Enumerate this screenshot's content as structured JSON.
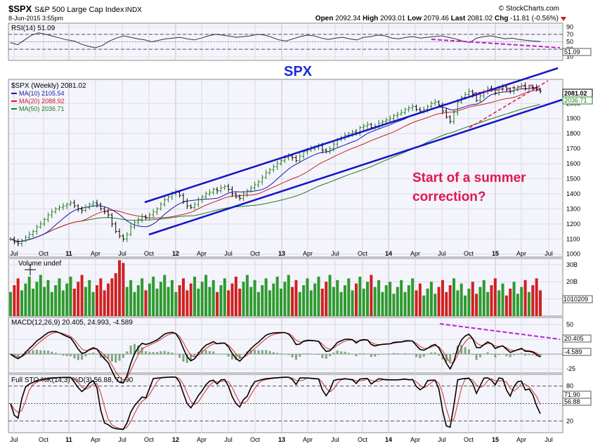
{
  "header": {
    "symbol": "$SPX",
    "name": "S&P 500 Large Cap Index",
    "exchange": "INDX",
    "date": "8-Jun-2015 3:55pm",
    "credit": "© StockCharts.com",
    "open_label": "Open",
    "open": "2092.34",
    "high_label": "High",
    "high": "2093.01",
    "low_label": "Low",
    "low": "2079.46",
    "last_label": "Last",
    "last": "2081.02",
    "chg_label": "Chg",
    "chg": "-11.81 (-0.56%)",
    "down_arrow_icon": "down-triangle-icon"
  },
  "annotations": {
    "title": "SPX",
    "note_line1": "Start of a summer",
    "note_line2": "correction?",
    "title_color": "#1b2bd8",
    "note_color": "#e0184f",
    "channel_color": "#1313c8",
    "divergence_color": "#c020c8"
  },
  "chart_data": [
    {
      "panel": "rsi",
      "type": "line",
      "legend": "RSI(14) 51.09",
      "current": "51.09",
      "ylim": [
        0,
        100
      ],
      "yticks": [
        "90",
        "70",
        "50",
        "30",
        "10"
      ],
      "overbought": 70,
      "oversold": 30,
      "series": [
        {
          "values": [
            48,
            42,
            55,
            68,
            74,
            70,
            65,
            60,
            55,
            52,
            44,
            38,
            34,
            40,
            52,
            60,
            66,
            62,
            58,
            55,
            50,
            54,
            58,
            60,
            62,
            58,
            55,
            60,
            66,
            70,
            68,
            65,
            62,
            64,
            66,
            70,
            68,
            62,
            55,
            52,
            58,
            64,
            68,
            66,
            60,
            56,
            60,
            62,
            58,
            55,
            62,
            64,
            68,
            66,
            60,
            58,
            62,
            64,
            60,
            62,
            64,
            66,
            62,
            58,
            52,
            48,
            60,
            64,
            66,
            62,
            58,
            60,
            56,
            54,
            52,
            51
          ]
        }
      ]
    },
    {
      "panel": "price",
      "type": "line",
      "legend": "$SPX (Weekly) 2081.02",
      "ylim": [
        980,
        2160
      ],
      "yticks": [
        "2000",
        "1900",
        "1800",
        "1700",
        "1600",
        "1500",
        "1400",
        "1300",
        "1200",
        "1100",
        "1000"
      ],
      "last_tags": [
        "2081.02",
        "2036.71"
      ],
      "series": [
        {
          "name": "$SPX (Weekly)",
          "value": "2081.02",
          "values": [
            1100,
            1080,
            1070,
            1090,
            1110,
            1130,
            1150,
            1180,
            1200,
            1230,
            1260,
            1280,
            1300,
            1310,
            1320,
            1330,
            1340,
            1320,
            1300,
            1290,
            1310,
            1330,
            1340,
            1330,
            1300,
            1280,
            1260,
            1200,
            1150,
            1120,
            1100,
            1130,
            1180,
            1210,
            1230,
            1250,
            1240,
            1260,
            1280,
            1300,
            1330,
            1360,
            1380,
            1400,
            1410,
            1390,
            1350,
            1320,
            1310,
            1330,
            1360,
            1380,
            1400,
            1410,
            1430,
            1420,
            1440,
            1450,
            1430,
            1400,
            1380,
            1370,
            1400,
            1420,
            1440,
            1460,
            1480,
            1510,
            1540,
            1560,
            1580,
            1600,
            1620,
            1640,
            1650,
            1640,
            1620,
            1650,
            1680,
            1690,
            1700,
            1710,
            1720,
            1690,
            1680,
            1700,
            1730,
            1760,
            1770,
            1790,
            1800,
            1810,
            1800,
            1840,
            1850,
            1860,
            1840,
            1850,
            1870,
            1880,
            1890,
            1900,
            1920,
            1930,
            1940,
            1960,
            1970,
            1980,
            1960,
            1950,
            1960,
            1980,
            2000,
            2010,
            1990,
            1950,
            1910,
            1880,
            1940,
            2010,
            2040,
            2060,
            2080,
            2060,
            2020,
            2050,
            2080,
            2100,
            2090,
            2070,
            2100,
            2110,
            2090,
            2080,
            2100,
            2110,
            2120,
            2100,
            2110,
            2107,
            2092,
            2081
          ]
        },
        {
          "name": "MA(10)",
          "value": "2105.54"
        },
        {
          "name": "MA(20)",
          "value": "2088.92"
        },
        {
          "name": "MA(50)",
          "value": "2036.71"
        }
      ]
    },
    {
      "panel": "volume",
      "type": "bar",
      "legend": "Volume undef",
      "yticks": [
        "30B",
        "20B",
        "10B"
      ],
      "current_tag": "1010209",
      "max_value_B": 33.6
    },
    {
      "panel": "macd",
      "type": "line",
      "legend": "MACD(12,26,9) 20.405, 24.993, -4.589",
      "ylim": [
        -32,
        62
      ],
      "yticks": [
        "50",
        "25",
        "-25"
      ],
      "tags": [
        "20.405",
        "-4.589"
      ],
      "series": [
        {
          "name": "MACD(12,26,9)",
          "value": "20.405"
        },
        {
          "name": "Signal",
          "value": "24.993"
        },
        {
          "name": "Histogram",
          "value": "-4.589"
        }
      ]
    },
    {
      "panel": "stochastic",
      "type": "line",
      "legend": "Full STO %K(14,3) %D(3) 56.88, 71.90",
      "ylim": [
        0,
        100
      ],
      "yticks": [
        "80",
        "50",
        "20"
      ],
      "tags": [
        "71.90",
        "56.88"
      ],
      "series": [
        {
          "name": "%K(14,3)",
          "value": "56.88"
        },
        {
          "name": "%D(3)",
          "value": "71.90"
        }
      ]
    }
  ],
  "x_axis": {
    "labels": [
      "Jul",
      "Oct",
      "11",
      "Apr",
      "Jul",
      "Oct",
      "12",
      "Apr",
      "Jul",
      "Oct",
      "13",
      "Apr",
      "Jul",
      "Oct",
      "14",
      "Apr",
      "Jul",
      "Oct",
      "15",
      "Apr",
      "Jul"
    ],
    "year_labels": [
      "11",
      "12",
      "13",
      "14",
      "15"
    ]
  }
}
